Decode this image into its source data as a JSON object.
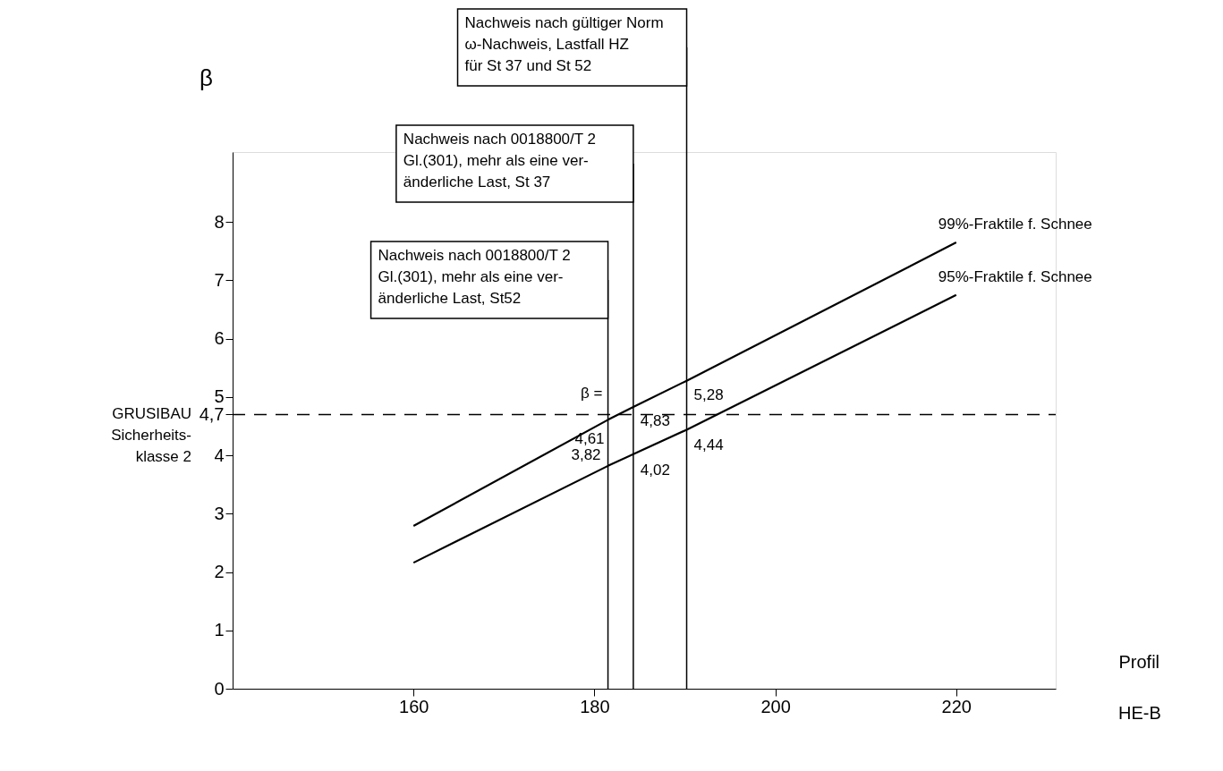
{
  "chart_data": {
    "type": "line",
    "xlabel": "Profil",
    "ylabel": "β",
    "xlim": [
      140,
      231
    ],
    "ylim": [
      0,
      9.2
    ],
    "xticks": [
      160,
      180,
      200,
      220
    ],
    "yticks": [
      0,
      1,
      2,
      3,
      {
        "value": 4,
        "label": "4"
      },
      {
        "value": 4.7,
        "label": "4,7"
      },
      5,
      6,
      7,
      8
    ],
    "grid": false,
    "marker": "none",
    "line_style": "solid",
    "series": [
      {
        "name": "99%-Fraktile f. Schnee",
        "color": "#000000",
        "x": [
          160,
          181.5,
          184.3,
          190.2,
          220
        ],
        "values": [
          2.79,
          4.61,
          4.83,
          5.28,
          7.65
        ],
        "value_labels": [
          null,
          "4,61",
          "4,83",
          "5,28",
          null
        ]
      },
      {
        "name": "95%-Fraktile f. Schnee",
        "color": "#000000",
        "x": [
          160,
          181.5,
          184.3,
          190.2,
          220
        ],
        "values": [
          2.16,
          3.82,
          4.02,
          4.44,
          6.75
        ],
        "value_labels": [
          null,
          "3,82",
          "4,02",
          "4,44",
          null
        ]
      }
    ],
    "ref_lines": [
      {
        "axis": "y",
        "value": 4.7,
        "label": "GRUSIBAU\nSicherheits-\nklasse 2",
        "color": "#000000",
        "line_style": "dashed"
      },
      {
        "axis": "x",
        "value": 181.5,
        "label": "Nachweis nach 0018800/T 2\nGl.(301), mehr als eine ver-\nänderliche Last, St52",
        "color": "#000000",
        "line_style": "solid"
      },
      {
        "axis": "x",
        "value": 184.3,
        "label": "Nachweis nach 0018800/T 2\nGl.(301), mehr als eine ver-\nänderliche Last, St 37",
        "color": "#000000",
        "line_style": "solid"
      },
      {
        "axis": "x",
        "value": 190.2,
        "label": "Nachweis nach gültiger Norm\nω-Nachweis, Lastfall HZ\nfür  St 37 und St 52",
        "color": "#000000",
        "line_style": "solid"
      }
    ],
    "annotations": [
      "HE-B",
      {
        "text": "β =",
        "x": 181.5,
        "y": 5.0
      }
    ]
  }
}
